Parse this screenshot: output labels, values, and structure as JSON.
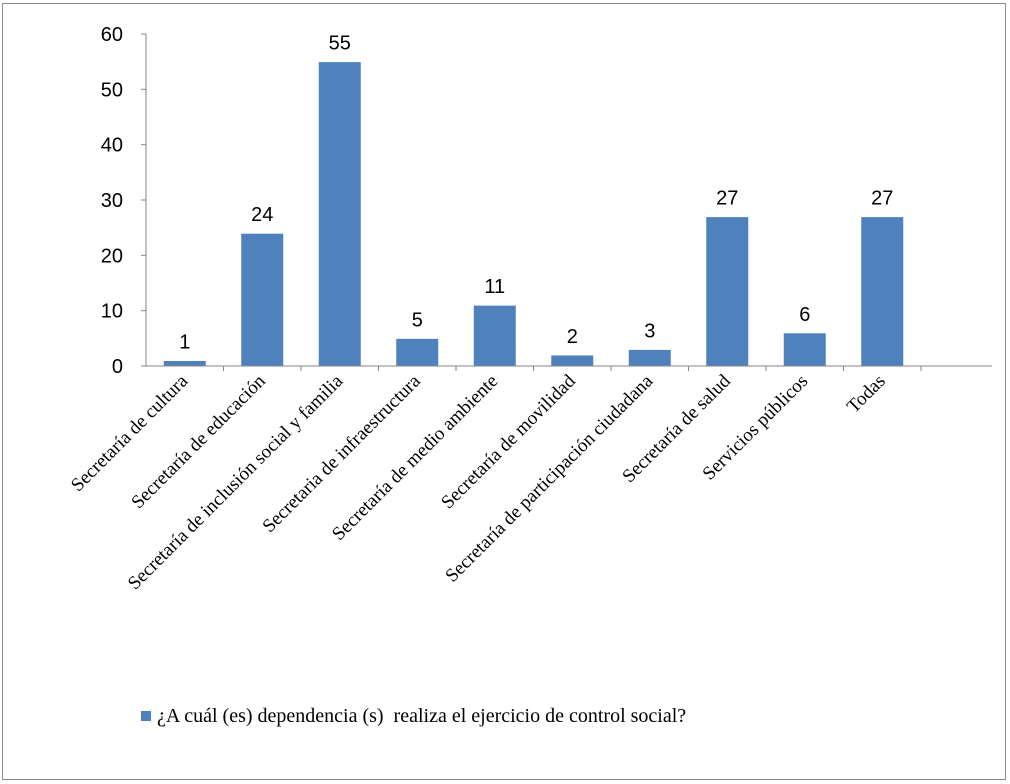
{
  "chart_data": {
    "type": "bar",
    "categories": [
      "Secretaría de cultura",
      "Secretaría de educación",
      "Secretaría de inclusión social y familia",
      "Secretaria de infraestructura",
      "Secretaría de medio ambiente",
      "Secretaría de movilidad",
      "Secretaría de participación ciudadana",
      "Secretaría de salud",
      "Servicios públicos",
      "Todas"
    ],
    "series": [
      {
        "name": "¿A cuál (es) dependencia (s)  realiza el ejercicio de control social?",
        "values": [
          1,
          24,
          55,
          5,
          11,
          2,
          3,
          27,
          6,
          27
        ]
      }
    ],
    "ylim": [
      0,
      60
    ],
    "yticks": [
      0,
      10,
      20,
      30,
      40,
      50,
      60
    ],
    "grid": false,
    "legend_position": "bottom",
    "colors": {
      "bar": "#4f81bd",
      "axis": "#868686"
    }
  }
}
